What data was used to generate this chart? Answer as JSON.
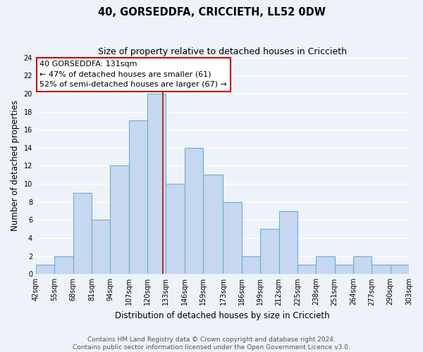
{
  "title": "40, GORSEDDFA, CRICCIETH, LL52 0DW",
  "subtitle": "Size of property relative to detached houses in Criccieth",
  "xlabel": "Distribution of detached houses by size in Criccieth",
  "ylabel": "Number of detached properties",
  "bin_edges": [
    42,
    55,
    68,
    81,
    94,
    107,
    120,
    133,
    146,
    159,
    173,
    186,
    199,
    212,
    225,
    238,
    251,
    264,
    277,
    290,
    303
  ],
  "bin_labels": [
    "42sqm",
    "55sqm",
    "68sqm",
    "81sqm",
    "94sqm",
    "107sqm",
    "120sqm",
    "133sqm",
    "146sqm",
    "159sqm",
    "173sqm",
    "186sqm",
    "199sqm",
    "212sqm",
    "225sqm",
    "238sqm",
    "251sqm",
    "264sqm",
    "277sqm",
    "290sqm",
    "303sqm"
  ],
  "counts": [
    1,
    2,
    9,
    6,
    12,
    17,
    20,
    10,
    14,
    11,
    8,
    2,
    5,
    7,
    1,
    2,
    1,
    2,
    1,
    1
  ],
  "bar_color": "#c5d8ef",
  "bar_edge_color": "#6baed6",
  "marker_value": 131,
  "marker_color": "#cc0000",
  "annotation_lines": [
    "40 GORSEDDFA: 131sqm",
    "← 47% of detached houses are smaller (61)",
    "52% of semi-detached houses are larger (67) →"
  ],
  "ylim": [
    0,
    24
  ],
  "yticks": [
    0,
    2,
    4,
    6,
    8,
    10,
    12,
    14,
    16,
    18,
    20,
    22,
    24
  ],
  "footer_line1": "Contains HM Land Registry data © Crown copyright and database right 2024.",
  "footer_line2": "Contains public sector information licensed under the Open Government Licence v3.0.",
  "bg_color": "#eef2f9",
  "grid_color": "#ffffff",
  "title_fontsize": 10.5,
  "subtitle_fontsize": 9,
  "axis_label_fontsize": 8.5,
  "tick_fontsize": 7,
  "annotation_fontsize": 8,
  "footer_fontsize": 6.5
}
